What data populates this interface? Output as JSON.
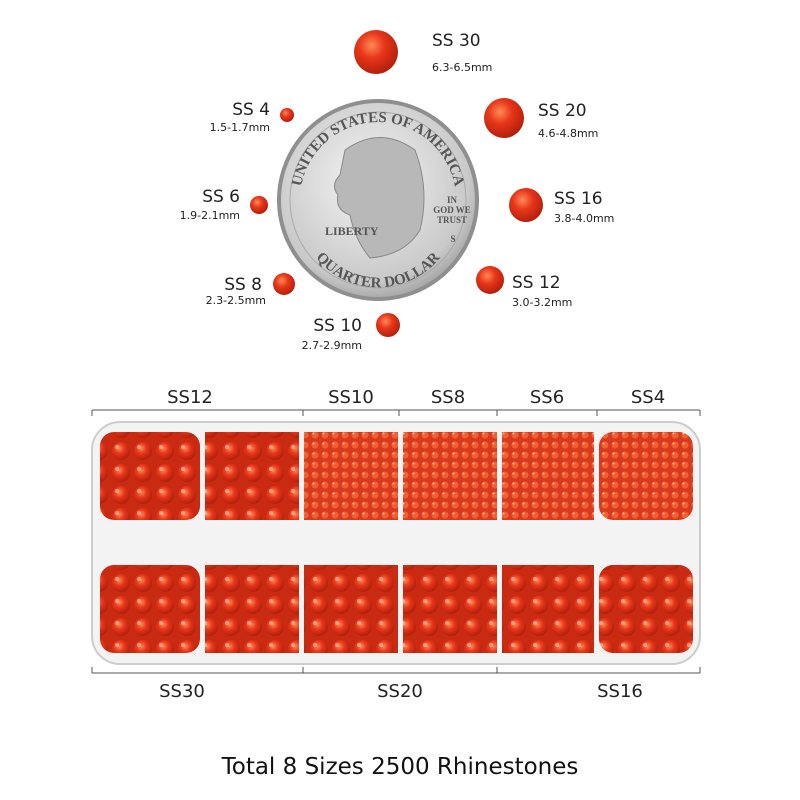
{
  "sizes": [
    {
      "label": "SS 30",
      "range": "6.3-6.5mm"
    },
    {
      "label": "SS 20",
      "range": "4.6-4.8mm"
    },
    {
      "label": "SS 16",
      "range": "3.8-4.0mm"
    },
    {
      "label": "SS 12",
      "range": "3.0-3.2mm"
    },
    {
      "label": "SS 10",
      "range": "2.7-2.9mm"
    },
    {
      "label": "SS 8",
      "range": "2.3-2.5mm"
    },
    {
      "label": "SS 6",
      "range": "1.9-2.1mm"
    },
    {
      "label": "SS 4",
      "range": "1.5-1.7mm"
    }
  ],
  "coin": {
    "top": "UNITED STATES OF AMERICA",
    "left": "LIBERTY",
    "motto": [
      "IN",
      "GOD WE",
      "TRUST"
    ],
    "mint": "S",
    "bottom": "QUARTER DOLLAR"
  },
  "box": {
    "top_labels": [
      "SS12",
      "SS10",
      "SS8",
      "SS6",
      "SS4"
    ],
    "bottom_labels": [
      "SS30",
      "SS20",
      "SS16"
    ]
  },
  "footer": "Total 8 Sizes 2500 Rhinestones"
}
